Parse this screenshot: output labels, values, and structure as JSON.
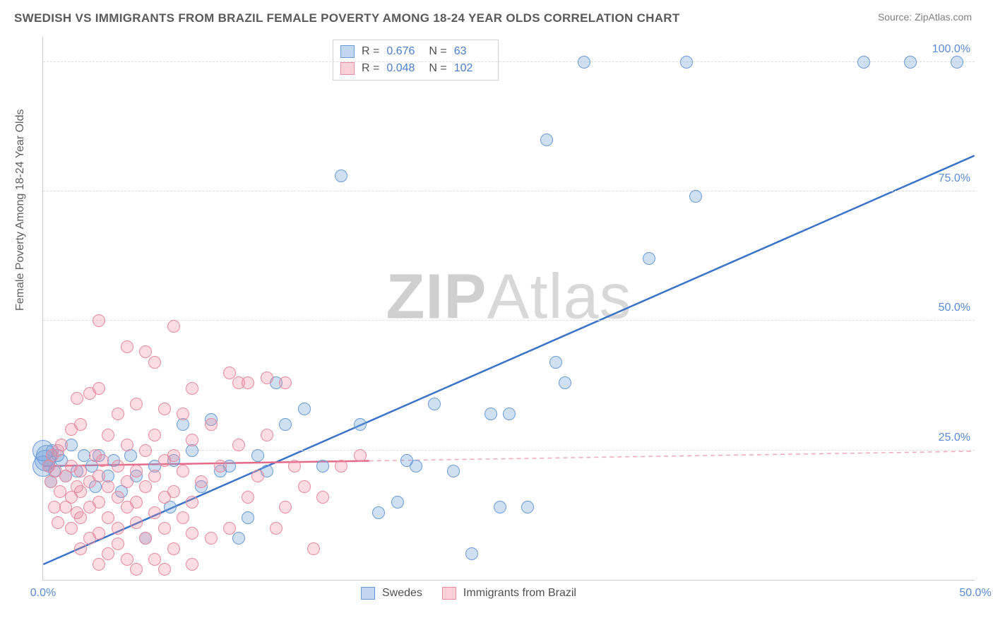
{
  "title": "SWEDISH VS IMMIGRANTS FROM BRAZIL FEMALE POVERTY AMONG 18-24 YEAR OLDS CORRELATION CHART",
  "source": "Source: ZipAtlas.com",
  "y_axis_title": "Female Poverty Among 18-24 Year Olds",
  "watermark_a": "ZIP",
  "watermark_b": "Atlas",
  "chart": {
    "type": "scatter",
    "xlim": [
      0,
      50
    ],
    "ylim": [
      0,
      105
    ],
    "x_ticks": [
      {
        "v": 0,
        "label": "0.0%"
      },
      {
        "v": 50,
        "label": "50.0%"
      }
    ],
    "y_ticks": [
      {
        "v": 25,
        "label": "25.0%"
      },
      {
        "v": 50,
        "label": "50.0%"
      },
      {
        "v": 75,
        "label": "75.0%"
      },
      {
        "v": 100,
        "label": "100.0%"
      }
    ],
    "grid_color": "#dddddd",
    "background_color": "#ffffff",
    "marker_radius": 9,
    "marker_radius_large": 15,
    "series": [
      {
        "name": "Swedes",
        "color_fill": "rgba(120,165,220,0.35)",
        "color_stroke": "#6a9bd8",
        "reg_line": {
          "x1": 0,
          "y1": 3,
          "x2": 50,
          "y2": 82,
          "color": "#3a72c8",
          "width": 2.5,
          "dash": "none"
        },
        "points": [
          [
            34.5,
            100
          ],
          [
            44,
            100
          ],
          [
            46.5,
            100
          ],
          [
            49,
            100
          ],
          [
            29,
            100
          ],
          [
            27,
            85
          ],
          [
            35,
            74
          ],
          [
            32.5,
            62
          ],
          [
            28,
            38
          ],
          [
            25,
            32
          ],
          [
            24,
            32
          ],
          [
            27.5,
            42
          ],
          [
            26,
            14
          ],
          [
            24.5,
            14
          ],
          [
            23,
            5
          ],
          [
            22,
            21
          ],
          [
            21,
            34
          ],
          [
            20,
            22
          ],
          [
            19,
            15
          ],
          [
            19.5,
            23
          ],
          [
            18,
            13
          ],
          [
            17,
            30
          ],
          [
            16,
            78
          ],
          [
            15,
            22
          ],
          [
            14,
            33
          ],
          [
            13,
            30
          ],
          [
            12.5,
            38
          ],
          [
            12,
            21
          ],
          [
            11.5,
            24
          ],
          [
            11,
            12
          ],
          [
            10.5,
            8
          ],
          [
            10,
            22
          ],
          [
            9.5,
            21
          ],
          [
            9,
            31
          ],
          [
            8.5,
            18
          ],
          [
            8,
            25
          ],
          [
            7.5,
            30
          ],
          [
            7,
            23
          ],
          [
            6.8,
            14
          ],
          [
            6,
            22
          ],
          [
            5.5,
            8
          ],
          [
            5,
            20
          ],
          [
            4.7,
            24
          ],
          [
            4.2,
            17
          ],
          [
            3.8,
            23
          ],
          [
            3.5,
            20
          ],
          [
            3,
            24
          ],
          [
            2.8,
            18
          ],
          [
            2.6,
            22
          ],
          [
            2.2,
            24
          ],
          [
            1.8,
            21
          ],
          [
            1.5,
            26
          ],
          [
            1.2,
            20
          ],
          [
            1,
            23
          ],
          [
            0.8,
            24
          ],
          [
            0.6,
            21
          ],
          [
            0.5,
            25
          ],
          [
            0.4,
            19
          ],
          [
            0.3,
            22
          ],
          [
            0.2,
            24
          ],
          [
            0.1,
            23
          ],
          [
            0,
            22
          ],
          [
            0,
            25
          ]
        ]
      },
      {
        "name": "Immigrants from Brazil",
        "color_fill": "rgba(240,140,160,0.30)",
        "color_stroke": "#e88aa0",
        "reg_line": {
          "x1": 0,
          "y1": 22,
          "x2": 17.5,
          "y2": 23,
          "color": "#e46a8a",
          "width": 2.5,
          "dash": "none",
          "ext_x2": 50,
          "ext_dash": "6,5",
          "ext_color": "#f0a8b8"
        },
        "points": [
          [
            3,
            50
          ],
          [
            7,
            49
          ],
          [
            4.5,
            45
          ],
          [
            5.5,
            44
          ],
          [
            6,
            42
          ],
          [
            10,
            40
          ],
          [
            11,
            38
          ],
          [
            12,
            39
          ],
          [
            13,
            38
          ],
          [
            8,
            37
          ],
          [
            3,
            37
          ],
          [
            2.5,
            36
          ],
          [
            1.8,
            35
          ],
          [
            5,
            34
          ],
          [
            6.5,
            33
          ],
          [
            4,
            32
          ],
          [
            7.5,
            32
          ],
          [
            9,
            30
          ],
          [
            2,
            30
          ],
          [
            1.5,
            29
          ],
          [
            3.5,
            28
          ],
          [
            6,
            28
          ],
          [
            8,
            27
          ],
          [
            10.5,
            26
          ],
          [
            4.5,
            26
          ],
          [
            1,
            26
          ],
          [
            0.8,
            25
          ],
          [
            5.5,
            25
          ],
          [
            7,
            24
          ],
          [
            2.8,
            24
          ],
          [
            0.5,
            24
          ],
          [
            3.2,
            23
          ],
          [
            6.5,
            23
          ],
          [
            9.5,
            22
          ],
          [
            1.5,
            22
          ],
          [
            4,
            22
          ],
          [
            0.3,
            22
          ],
          [
            2,
            21
          ],
          [
            5,
            21
          ],
          [
            7.5,
            21
          ],
          [
            0.7,
            21
          ],
          [
            3,
            20
          ],
          [
            1.2,
            20
          ],
          [
            6,
            20
          ],
          [
            8.5,
            19
          ],
          [
            2.5,
            19
          ],
          [
            4.5,
            19
          ],
          [
            0.4,
            19
          ],
          [
            1.8,
            18
          ],
          [
            5.5,
            18
          ],
          [
            3.5,
            18
          ],
          [
            7,
            17
          ],
          [
            2,
            17
          ],
          [
            0.9,
            17
          ],
          [
            4,
            16
          ],
          [
            6.5,
            16
          ],
          [
            1.5,
            16
          ],
          [
            3,
            15
          ],
          [
            5,
            15
          ],
          [
            8,
            15
          ],
          [
            2.5,
            14
          ],
          [
            0.6,
            14
          ],
          [
            4.5,
            14
          ],
          [
            6,
            13
          ],
          [
            1.8,
            13
          ],
          [
            3.5,
            12
          ],
          [
            7.5,
            12
          ],
          [
            2,
            12
          ],
          [
            5,
            11
          ],
          [
            0.8,
            11
          ],
          [
            4,
            10
          ],
          [
            6.5,
            10
          ],
          [
            1.5,
            10
          ],
          [
            3,
            9
          ],
          [
            8,
            9
          ],
          [
            2.5,
            8
          ],
          [
            5.5,
            8
          ],
          [
            4,
            7
          ],
          [
            7,
            6
          ],
          [
            1.2,
            14
          ],
          [
            3.5,
            5
          ],
          [
            6,
            4
          ],
          [
            2,
            6
          ],
          [
            4.5,
            4
          ],
          [
            5,
            2
          ],
          [
            6.5,
            2
          ],
          [
            8,
            3
          ],
          [
            3,
            3
          ],
          [
            9,
            8
          ],
          [
            10,
            10
          ],
          [
            11,
            16
          ],
          [
            12,
            28
          ],
          [
            13,
            14
          ],
          [
            14,
            18
          ],
          [
            15,
            16
          ],
          [
            16,
            22
          ],
          [
            17,
            24
          ],
          [
            10.5,
            38
          ],
          [
            11.5,
            20
          ],
          [
            12.5,
            10
          ],
          [
            13.5,
            22
          ],
          [
            14.5,
            6
          ]
        ]
      }
    ],
    "stats_box": {
      "rows": [
        {
          "swatch": "blue",
          "r_label": "R =",
          "r": "0.676",
          "n_label": "N =",
          "n": "63"
        },
        {
          "swatch": "pink",
          "r_label": "R =",
          "r": "0.048",
          "n_label": "N =",
          "n": "102"
        }
      ]
    },
    "bottom_legend": [
      {
        "swatch": "blue",
        "label": "Swedes"
      },
      {
        "swatch": "pink",
        "label": "Immigrants from Brazil"
      }
    ]
  }
}
